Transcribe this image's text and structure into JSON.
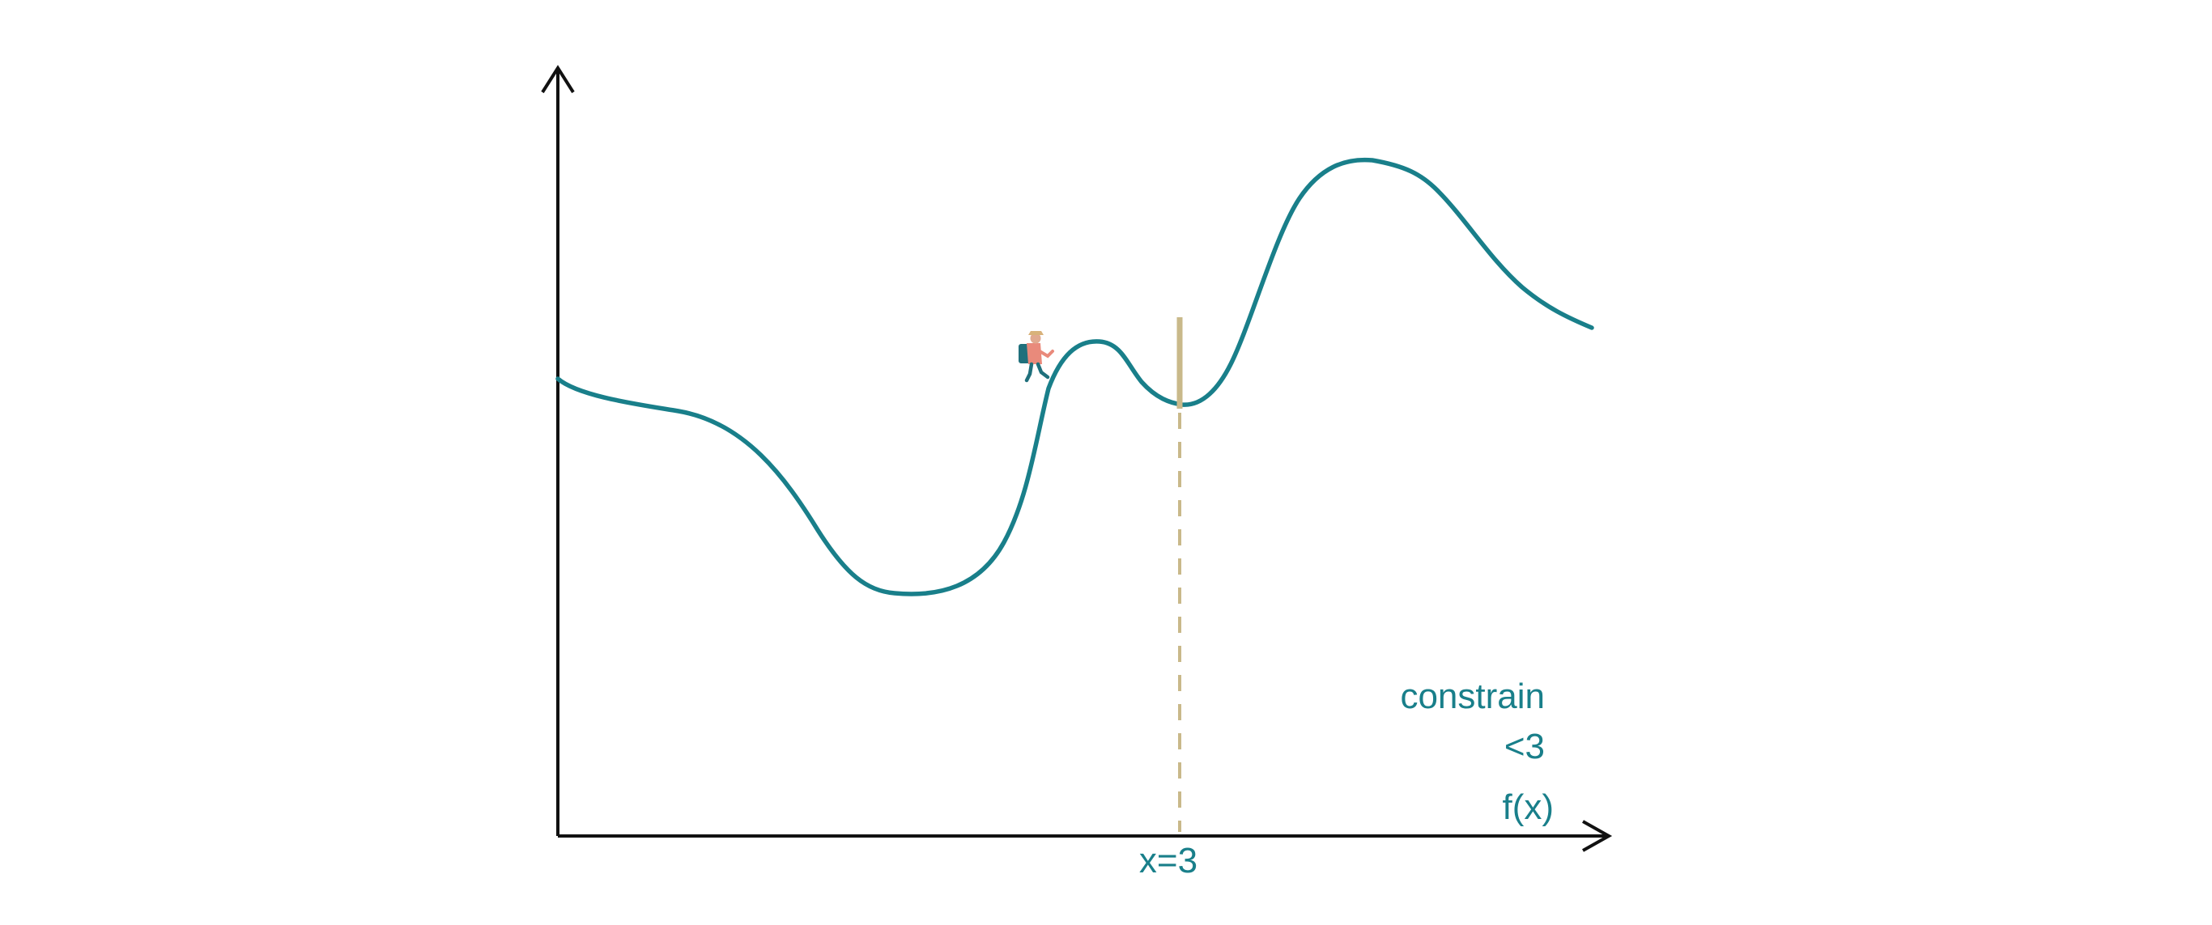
{
  "diagram": {
    "labels": {
      "constraint_line1": "constrain",
      "constraint_line2": "<3",
      "x_axis_label": "f(x)",
      "marker_label": "x=3"
    },
    "colors": {
      "curve": "#197f8a",
      "axes": "#111111",
      "barrier": "#c9b98a",
      "text": "#197f8a",
      "hiker_backpack": "#20707c",
      "hiker_body": "#e98a7b",
      "hiker_hat": "#d8b27a"
    },
    "icons": {
      "hiker": "hiker-icon"
    }
  }
}
